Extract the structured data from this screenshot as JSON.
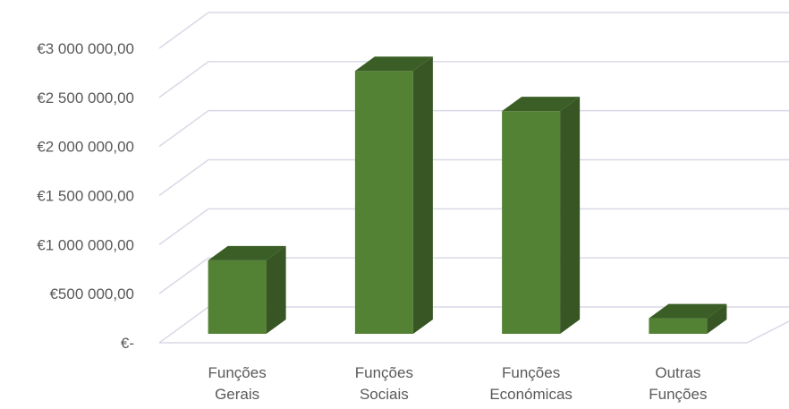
{
  "chart_data": {
    "type": "bar",
    "style": "3d-column",
    "categories": [
      [
        "Funções",
        "Gerais"
      ],
      [
        "Funções",
        "Sociais"
      ],
      [
        "Funções",
        "Económicas"
      ],
      [
        "Outras",
        "Funções"
      ]
    ],
    "values": [
      840000,
      2770000,
      2360000,
      250000
    ],
    "ylim": [
      0,
      3000000
    ],
    "yticks": [
      {
        "value": 0,
        "label": "€-"
      },
      {
        "value": 500000,
        "label": "€500 000,00"
      },
      {
        "value": 1000000,
        "label": "€1 000 000,00"
      },
      {
        "value": 1500000,
        "label": "€1 500 000,00"
      },
      {
        "value": 2000000,
        "label": "€2 000 000,00"
      },
      {
        "value": 2500000,
        "label": "€2 500 000,00"
      },
      {
        "value": 3000000,
        "label": "€3 000 000,00"
      }
    ],
    "grid": true,
    "legend": "none",
    "colors": {
      "front": "#548235",
      "side": "#375623",
      "top": "#3a5e25",
      "grid": "#d9d9e6"
    }
  }
}
